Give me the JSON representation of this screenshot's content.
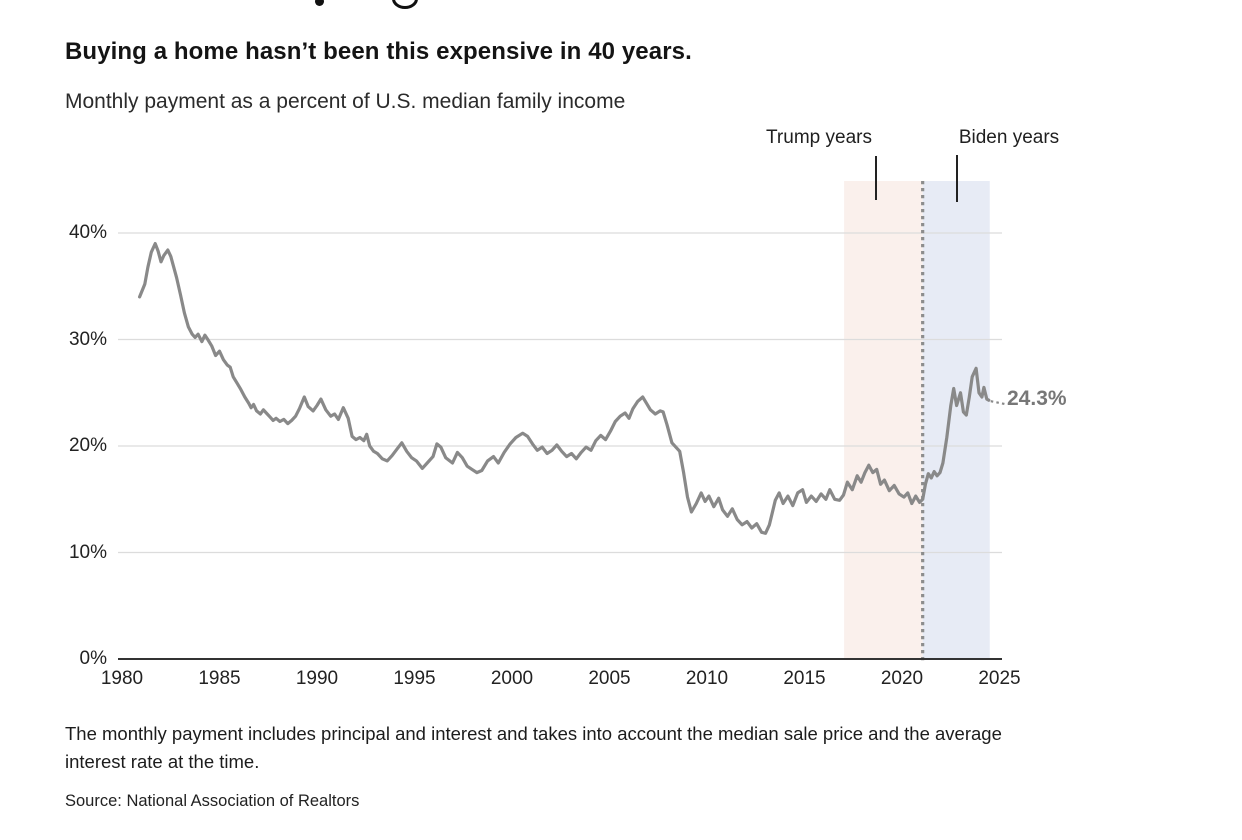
{
  "header": {
    "title": "Buying a home hasn’t been this expensive in 40 years.",
    "subtitle": "Monthly payment as a percent of U.S. median family income"
  },
  "chart_data": {
    "type": "line",
    "title": "Buying a home hasn’t been this expensive in 40 years.",
    "subtitle": "Monthly payment as a percent of U.S. median family income",
    "xlabel": "",
    "ylabel": "Monthly payment as a percent of U.S. median family income",
    "xlim": [
      1980,
      2025.3
    ],
    "ylim": [
      0,
      45
    ],
    "grid": "horizontal",
    "x_ticks": [
      1980,
      1985,
      1990,
      1995,
      2000,
      2005,
      2010,
      2015,
      2020,
      2025
    ],
    "y_ticks": [
      {
        "value": 0,
        "label": "0%"
      },
      {
        "value": 10,
        "label": "10%"
      },
      {
        "value": 20,
        "label": "20%"
      },
      {
        "value": 30,
        "label": "30%"
      },
      {
        "value": 40,
        "label": "40%"
      }
    ],
    "regions": [
      {
        "name": "Trump years",
        "start": 2017.03,
        "end": 2021.06,
        "color": "#faf0ec"
      },
      {
        "name": "Biden years",
        "start": 2021.06,
        "end": 2024.5,
        "color": "#e7ebf5"
      }
    ],
    "divider": {
      "x": 2021.06,
      "style": "dotted",
      "color": "#8d8d8d"
    },
    "end_label": {
      "text": "24.3%",
      "value": 24.3,
      "year": 2024.45
    },
    "series": [
      {
        "name": "Monthly payment as % of median family income",
        "color": "#898989",
        "points": [
          [
            1980.9,
            34.0
          ],
          [
            1981.17,
            35.2
          ],
          [
            1981.33,
            36.8
          ],
          [
            1981.5,
            38.2
          ],
          [
            1981.7,
            39.0
          ],
          [
            1981.85,
            38.3
          ],
          [
            1982.0,
            37.3
          ],
          [
            1982.15,
            37.9
          ],
          [
            1982.35,
            38.4
          ],
          [
            1982.5,
            37.8
          ],
          [
            1982.65,
            36.8
          ],
          [
            1982.8,
            35.8
          ],
          [
            1983.0,
            34.2
          ],
          [
            1983.2,
            32.5
          ],
          [
            1983.4,
            31.2
          ],
          [
            1983.6,
            30.5
          ],
          [
            1983.75,
            30.2
          ],
          [
            1983.9,
            30.5
          ],
          [
            1984.1,
            29.8
          ],
          [
            1984.25,
            30.4
          ],
          [
            1984.4,
            30.0
          ],
          [
            1984.6,
            29.4
          ],
          [
            1984.8,
            28.5
          ],
          [
            1985.0,
            28.9
          ],
          [
            1985.2,
            28.1
          ],
          [
            1985.4,
            27.6
          ],
          [
            1985.55,
            27.4
          ],
          [
            1985.7,
            26.5
          ],
          [
            1985.9,
            25.9
          ],
          [
            1986.1,
            25.3
          ],
          [
            1986.3,
            24.6
          ],
          [
            1986.5,
            24.0
          ],
          [
            1986.62,
            23.6
          ],
          [
            1986.75,
            23.9
          ],
          [
            1986.9,
            23.3
          ],
          [
            1987.1,
            23.0
          ],
          [
            1987.25,
            23.4
          ],
          [
            1987.4,
            23.1
          ],
          [
            1987.6,
            22.7
          ],
          [
            1987.75,
            22.4
          ],
          [
            1987.9,
            22.6
          ],
          [
            1988.1,
            22.3
          ],
          [
            1988.3,
            22.5
          ],
          [
            1988.5,
            22.1
          ],
          [
            1988.7,
            22.4
          ],
          [
            1988.9,
            22.8
          ],
          [
            1989.1,
            23.5
          ],
          [
            1989.35,
            24.6
          ],
          [
            1989.55,
            23.7
          ],
          [
            1989.8,
            23.3
          ],
          [
            1990.0,
            23.8
          ],
          [
            1990.2,
            24.4
          ],
          [
            1990.45,
            23.4
          ],
          [
            1990.7,
            22.8
          ],
          [
            1990.9,
            23.0
          ],
          [
            1991.1,
            22.5
          ],
          [
            1991.35,
            23.6
          ],
          [
            1991.6,
            22.6
          ],
          [
            1991.8,
            20.9
          ],
          [
            1992.0,
            20.6
          ],
          [
            1992.2,
            20.8
          ],
          [
            1992.4,
            20.5
          ],
          [
            1992.55,
            21.1
          ],
          [
            1992.7,
            20.0
          ],
          [
            1992.9,
            19.5
          ],
          [
            1993.1,
            19.3
          ],
          [
            1993.35,
            18.8
          ],
          [
            1993.6,
            18.6
          ],
          [
            1993.85,
            19.1
          ],
          [
            1994.1,
            19.7
          ],
          [
            1994.35,
            20.3
          ],
          [
            1994.6,
            19.5
          ],
          [
            1994.85,
            18.9
          ],
          [
            1995.1,
            18.6
          ],
          [
            1995.4,
            17.9
          ],
          [
            1995.65,
            18.4
          ],
          [
            1995.95,
            19.0
          ],
          [
            1996.15,
            20.2
          ],
          [
            1996.35,
            19.9
          ],
          [
            1996.6,
            18.9
          ],
          [
            1996.95,
            18.4
          ],
          [
            1997.2,
            19.4
          ],
          [
            1997.45,
            18.9
          ],
          [
            1997.7,
            18.1
          ],
          [
            1997.95,
            17.8
          ],
          [
            1998.2,
            17.5
          ],
          [
            1998.45,
            17.7
          ],
          [
            1998.75,
            18.6
          ],
          [
            1999.05,
            19.0
          ],
          [
            1999.3,
            18.4
          ],
          [
            1999.6,
            19.4
          ],
          [
            1999.9,
            20.2
          ],
          [
            2000.2,
            20.8
          ],
          [
            2000.55,
            21.2
          ],
          [
            2000.8,
            20.9
          ],
          [
            2001.05,
            20.2
          ],
          [
            2001.3,
            19.6
          ],
          [
            2001.55,
            19.9
          ],
          [
            2001.8,
            19.3
          ],
          [
            2002.05,
            19.6
          ],
          [
            2002.3,
            20.1
          ],
          [
            2002.55,
            19.5
          ],
          [
            2002.8,
            19.0
          ],
          [
            2003.05,
            19.3
          ],
          [
            2003.3,
            18.8
          ],
          [
            2003.55,
            19.4
          ],
          [
            2003.8,
            19.9
          ],
          [
            2004.05,
            19.6
          ],
          [
            2004.3,
            20.5
          ],
          [
            2004.55,
            21.0
          ],
          [
            2004.8,
            20.6
          ],
          [
            2005.05,
            21.4
          ],
          [
            2005.3,
            22.3
          ],
          [
            2005.55,
            22.8
          ],
          [
            2005.8,
            23.1
          ],
          [
            2006.0,
            22.6
          ],
          [
            2006.2,
            23.5
          ],
          [
            2006.45,
            24.2
          ],
          [
            2006.7,
            24.6
          ],
          [
            2006.9,
            24.0
          ],
          [
            2007.1,
            23.4
          ],
          [
            2007.35,
            23.0
          ],
          [
            2007.6,
            23.3
          ],
          [
            2007.75,
            23.2
          ],
          [
            2007.95,
            22.0
          ],
          [
            2008.2,
            20.3
          ],
          [
            2008.4,
            19.9
          ],
          [
            2008.6,
            19.5
          ],
          [
            2008.8,
            17.5
          ],
          [
            2009.0,
            15.2
          ],
          [
            2009.2,
            13.8
          ],
          [
            2009.45,
            14.6
          ],
          [
            2009.7,
            15.6
          ],
          [
            2009.9,
            14.8
          ],
          [
            2010.1,
            15.3
          ],
          [
            2010.35,
            14.3
          ],
          [
            2010.6,
            15.1
          ],
          [
            2010.8,
            14.0
          ],
          [
            2011.05,
            13.4
          ],
          [
            2011.3,
            14.1
          ],
          [
            2011.55,
            13.1
          ],
          [
            2011.8,
            12.6
          ],
          [
            2012.05,
            12.9
          ],
          [
            2012.3,
            12.3
          ],
          [
            2012.55,
            12.7
          ],
          [
            2012.8,
            11.9
          ],
          [
            2013.0,
            11.8
          ],
          [
            2013.2,
            12.6
          ],
          [
            2013.5,
            14.9
          ],
          [
            2013.7,
            15.6
          ],
          [
            2013.9,
            14.6
          ],
          [
            2014.15,
            15.3
          ],
          [
            2014.4,
            14.4
          ],
          [
            2014.65,
            15.6
          ],
          [
            2014.9,
            15.9
          ],
          [
            2015.1,
            14.7
          ],
          [
            2015.35,
            15.3
          ],
          [
            2015.6,
            14.8
          ],
          [
            2015.85,
            15.5
          ],
          [
            2016.1,
            15.0
          ],
          [
            2016.3,
            15.9
          ],
          [
            2016.55,
            15.0
          ],
          [
            2016.8,
            14.9
          ],
          [
            2017.0,
            15.4
          ],
          [
            2017.2,
            16.6
          ],
          [
            2017.45,
            15.9
          ],
          [
            2017.7,
            17.2
          ],
          [
            2017.9,
            16.6
          ],
          [
            2018.1,
            17.5
          ],
          [
            2018.3,
            18.2
          ],
          [
            2018.5,
            17.5
          ],
          [
            2018.7,
            17.8
          ],
          [
            2018.9,
            16.4
          ],
          [
            2019.1,
            16.8
          ],
          [
            2019.35,
            15.8
          ],
          [
            2019.6,
            16.3
          ],
          [
            2019.85,
            15.5
          ],
          [
            2020.1,
            15.2
          ],
          [
            2020.3,
            15.6
          ],
          [
            2020.5,
            14.6
          ],
          [
            2020.7,
            15.3
          ],
          [
            2020.9,
            14.7
          ],
          [
            2021.06,
            15.0
          ],
          [
            2021.2,
            16.4
          ],
          [
            2021.35,
            17.4
          ],
          [
            2021.5,
            17.0
          ],
          [
            2021.65,
            17.6
          ],
          [
            2021.8,
            17.2
          ],
          [
            2021.95,
            17.5
          ],
          [
            2022.1,
            18.4
          ],
          [
            2022.3,
            20.8
          ],
          [
            2022.5,
            23.8
          ],
          [
            2022.65,
            25.4
          ],
          [
            2022.8,
            23.8
          ],
          [
            2023.0,
            25.0
          ],
          [
            2023.15,
            23.2
          ],
          [
            2023.3,
            22.9
          ],
          [
            2023.45,
            24.6
          ],
          [
            2023.6,
            26.5
          ],
          [
            2023.8,
            27.3
          ],
          [
            2023.95,
            25.0
          ],
          [
            2024.1,
            24.6
          ],
          [
            2024.2,
            25.5
          ],
          [
            2024.35,
            24.4
          ],
          [
            2024.45,
            24.3
          ]
        ]
      }
    ],
    "colors": {
      "series": "#898989",
      "grid": "#dcdcdc",
      "baseline": "#333333",
      "trump_region": "#faf0ec",
      "biden_region": "#e7ebf5",
      "divider": "#8d8d8d",
      "end_label": "#777777"
    }
  },
  "footer": {
    "note": "The monthly payment includes principal and interest and takes into account the median sale price and the average interest rate at the time.",
    "source": "Source: National Association of Realtors"
  }
}
